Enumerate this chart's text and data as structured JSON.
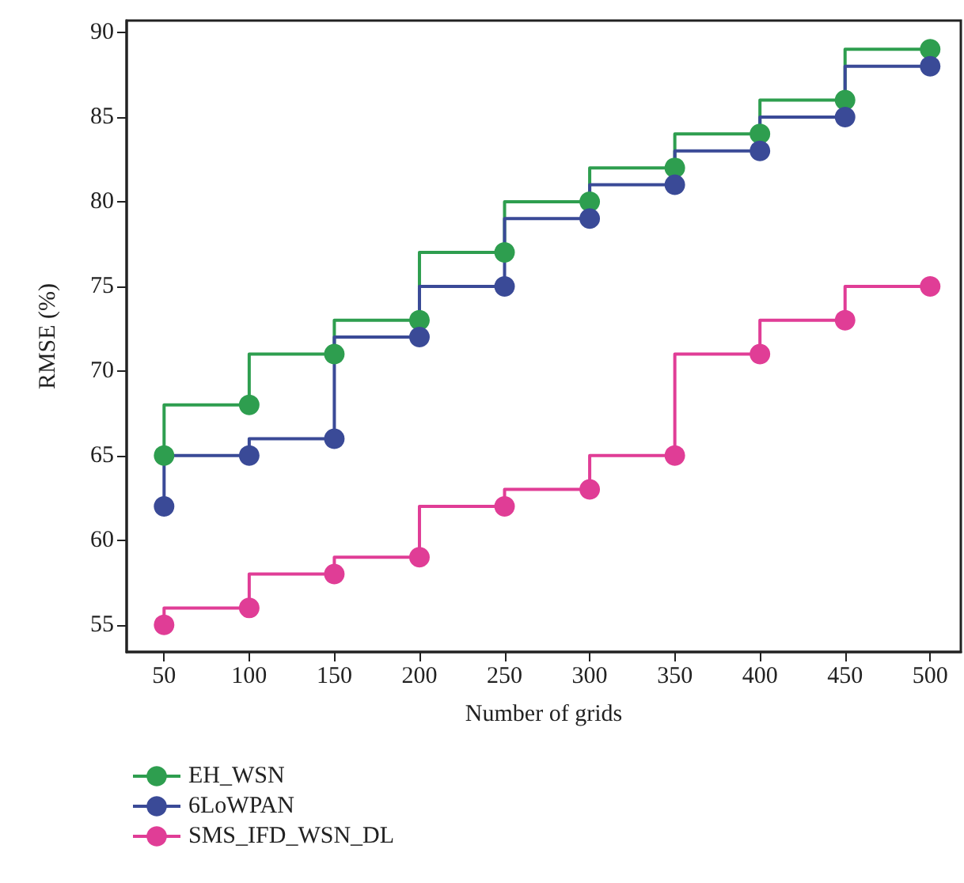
{
  "chart_data": {
    "type": "step",
    "xlabel": "Number of grids",
    "ylabel": "RMSE (%)",
    "x": [
      50,
      100,
      150,
      200,
      250,
      300,
      350,
      400,
      450,
      500
    ],
    "series": [
      {
        "name": "EH_WSN",
        "color": "#2e9e4f",
        "values": [
          65,
          68,
          71,
          73,
          77,
          80,
          82,
          84,
          86,
          89
        ]
      },
      {
        "name": "6LoWPAN",
        "color": "#3a4a97",
        "values": [
          62,
          65,
          66,
          72,
          75,
          79,
          81,
          83,
          85,
          88
        ]
      },
      {
        "name": "SMS_IFD_WSN_DL",
        "color": "#e03d96",
        "values": [
          55,
          56,
          58,
          59,
          62,
          63,
          65,
          71,
          73,
          75
        ]
      }
    ],
    "xlim": [
      28,
      518
    ],
    "xticks": [
      50,
      100,
      150,
      200,
      250,
      300,
      350,
      400,
      450,
      500
    ],
    "ylim": [
      53.4,
      90.7
    ],
    "yticks": [
      55,
      60,
      65,
      70,
      75,
      80,
      85,
      90
    ],
    "grid": false,
    "legend": "bottom left",
    "marker": "circle",
    "line_style": "solid"
  }
}
